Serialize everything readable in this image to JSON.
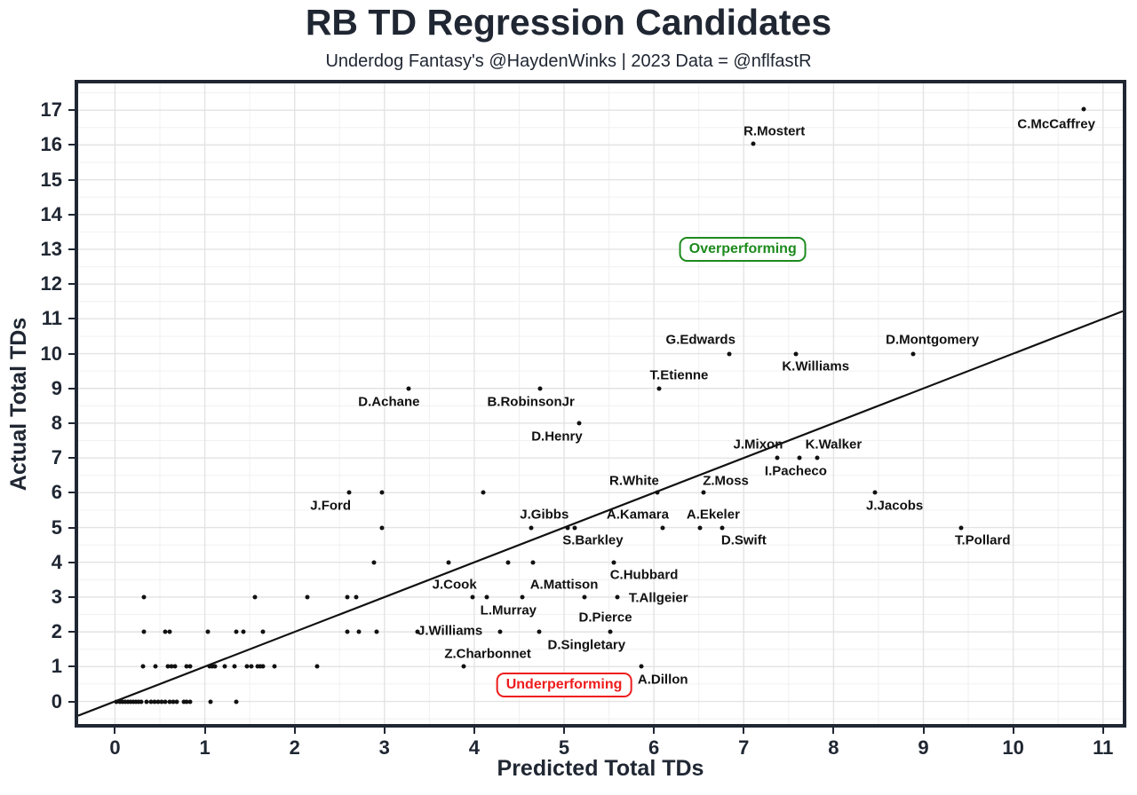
{
  "header": {
    "title": "RB TD Regression Candidates",
    "subtitle": "Underdog Fantasy's @HaydenWinks | 2023 Data = @nflfastR"
  },
  "chart_data": {
    "type": "scatter",
    "title": "RB TD Regression Candidates",
    "subtitle": "Underdog Fantasy's @HaydenWinks | 2023 Data = @nflfastR",
    "xlabel": "Predicted Total TDs",
    "ylabel": "Actual Total TDs",
    "xlim": [
      -0.41,
      11.22
    ],
    "ylim": [
      -0.65,
      17.77
    ],
    "x_ticks": [
      0,
      1,
      2,
      3,
      4,
      5,
      6,
      7,
      8,
      9,
      10,
      11
    ],
    "y_ticks": [
      0,
      1,
      2,
      3,
      4,
      5,
      6,
      7,
      8,
      9,
      10,
      11,
      12,
      13,
      14,
      15,
      16,
      17
    ],
    "grid": {
      "minor_step": 0.5,
      "major_color": "#e3e3e3",
      "minor_color": "#f0f0f0"
    },
    "identity_line": {
      "x1": -0.41,
      "y1": -0.41,
      "x2": 11.22,
      "y2": 11.22,
      "color": "#111111",
      "width": 2.2
    },
    "annotations": [
      {
        "text": "Overperforming",
        "x": 6.99,
        "y": 13.0,
        "color": "#1d8a1d"
      },
      {
        "text": "Underperforming",
        "x": 5.0,
        "y": 0.48,
        "color": "#ee1c1c"
      }
    ],
    "players": [
      {
        "name": "C.McCaffrey",
        "x": 10.78,
        "y": 17.03,
        "lx": 10.48,
        "ly": 16.6
      },
      {
        "name": "R.Mostert",
        "x": 7.11,
        "y": 16.03,
        "lx": 7.34,
        "ly": 16.4
      },
      {
        "name": "G.Edwards",
        "x": 6.84,
        "y": 10.0,
        "lx": 6.52,
        "ly": 10.4
      },
      {
        "name": "D.Montgomery",
        "x": 8.89,
        "y": 10.0,
        "lx": 9.1,
        "ly": 10.4
      },
      {
        "name": "K.Williams",
        "x": 7.58,
        "y": 10.0,
        "lx": 7.8,
        "ly": 9.63
      },
      {
        "name": "T.Etienne",
        "x": 6.06,
        "y": 9.0,
        "lx": 6.28,
        "ly": 9.37
      },
      {
        "name": "D.Achane",
        "x": 3.27,
        "y": 9.0,
        "lx": 3.05,
        "ly": 8.62
      },
      {
        "name": "B.RobinsonJr",
        "x": 4.73,
        "y": 9.0,
        "lx": 4.63,
        "ly": 8.62
      },
      {
        "name": "D.Henry",
        "x": 5.17,
        "y": 8.0,
        "lx": 4.92,
        "ly": 7.62
      },
      {
        "name": "J.Mixon",
        "x": 7.37,
        "y": 7.0,
        "lx": 7.16,
        "ly": 7.38
      },
      {
        "name": "K.Walker",
        "x": 7.82,
        "y": 7.0,
        "lx": 8.0,
        "ly": 7.38
      },
      {
        "name": "I.Pacheco",
        "x": 7.62,
        "y": 7.0,
        "lx": 7.58,
        "ly": 6.62
      },
      {
        "name": "R.White",
        "x": 6.04,
        "y": 6.0,
        "lx": 5.78,
        "ly": 6.35
      },
      {
        "name": "Z.Moss",
        "x": 6.55,
        "y": 6.0,
        "lx": 6.8,
        "ly": 6.35
      },
      {
        "name": "J.Ford",
        "x": 2.61,
        "y": 6.0,
        "lx": 2.4,
        "ly": 5.63
      },
      {
        "name": "J.Jacobs",
        "x": 8.46,
        "y": 6.0,
        "lx": 8.68,
        "ly": 5.63
      },
      {
        "name": "J.Gibbs",
        "x": 4.63,
        "y": 5.0,
        "lx": 4.78,
        "ly": 5.37
      },
      {
        "name": "A.Kamara",
        "x": 6.1,
        "y": 5.0,
        "lx": 5.82,
        "ly": 5.37
      },
      {
        "name": "A.Ekeler",
        "x": 6.51,
        "y": 5.0,
        "lx": 6.66,
        "ly": 5.37
      },
      {
        "name": "S.Barkley",
        "x": 5.12,
        "y": 5.0,
        "lx": 5.32,
        "ly": 4.62
      },
      {
        "name": "D.Swift",
        "x": 6.76,
        "y": 5.0,
        "lx": 7.0,
        "ly": 4.62
      },
      {
        "name": "T.Pollard",
        "x": 9.42,
        "y": 5.0,
        "lx": 9.66,
        "ly": 4.62
      },
      {
        "name": "C.Hubbard",
        "x": 5.55,
        "y": 4.0,
        "lx": 5.89,
        "ly": 3.63
      },
      {
        "name": "J.Cook",
        "x": 3.71,
        "y": 4.0,
        "lx": 3.78,
        "ly": 3.36
      },
      {
        "name": "A.Mattison",
        "x": 5.23,
        "y": 3.0,
        "lx": 5.0,
        "ly": 3.36
      },
      {
        "name": "T.Allgeier",
        "x": 5.59,
        "y": 3.0,
        "lx": 6.05,
        "ly": 2.98
      },
      {
        "name": "L.Murray",
        "x": 4.53,
        "y": 3.0,
        "lx": 4.38,
        "ly": 2.62
      },
      {
        "name": "J.Williams",
        "x": 3.37,
        "y": 2.0,
        "lx": 3.73,
        "ly": 2.02
      },
      {
        "name": "D.Singletary",
        "x": 4.72,
        "y": 2.0,
        "lx": 5.25,
        "ly": 1.61
      },
      {
        "name": "D.Pierce",
        "x": 5.51,
        "y": 2.0,
        "lx": 5.46,
        "ly": 2.4
      },
      {
        "name": "Z.Charbonnet",
        "x": 3.88,
        "y": 1.0,
        "lx": 4.15,
        "ly": 1.36
      },
      {
        "name": "A.Dillon",
        "x": 5.86,
        "y": 1.0,
        "lx": 6.1,
        "ly": 0.62
      }
    ],
    "background_points": [
      [
        2.97,
        6
      ],
      [
        4.1,
        6
      ],
      [
        2.97,
        5
      ],
      [
        5.04,
        5
      ],
      [
        2.88,
        4
      ],
      [
        4.38,
        4
      ],
      [
        4.65,
        4
      ],
      [
        0.32,
        3
      ],
      [
        1.56,
        3
      ],
      [
        2.14,
        3
      ],
      [
        2.59,
        3
      ],
      [
        2.69,
        3
      ],
      [
        3.98,
        3
      ],
      [
        4.14,
        3
      ],
      [
        0.32,
        2
      ],
      [
        0.56,
        2
      ],
      [
        0.61,
        2
      ],
      [
        1.03,
        2
      ],
      [
        1.35,
        2
      ],
      [
        1.43,
        2
      ],
      [
        1.65,
        2
      ],
      [
        2.59,
        2
      ],
      [
        2.72,
        2
      ],
      [
        2.91,
        2
      ],
      [
        4.29,
        2
      ],
      [
        0.31,
        1
      ],
      [
        0.45,
        1
      ],
      [
        0.59,
        1
      ],
      [
        0.63,
        1
      ],
      [
        0.67,
        1
      ],
      [
        0.8,
        1
      ],
      [
        0.84,
        1
      ],
      [
        1.05,
        1
      ],
      [
        1.08,
        1
      ],
      [
        1.11,
        1
      ],
      [
        1.22,
        1
      ],
      [
        1.33,
        1
      ],
      [
        1.47,
        1
      ],
      [
        1.52,
        1
      ],
      [
        1.59,
        1
      ],
      [
        1.62,
        1
      ],
      [
        1.65,
        1
      ],
      [
        1.78,
        1
      ],
      [
        2.25,
        1
      ],
      [
        0.02,
        0
      ],
      [
        0.05,
        0
      ],
      [
        0.08,
        0
      ],
      [
        0.11,
        0
      ],
      [
        0.14,
        0
      ],
      [
        0.17,
        0
      ],
      [
        0.2,
        0
      ],
      [
        0.23,
        0
      ],
      [
        0.26,
        0
      ],
      [
        0.29,
        0
      ],
      [
        0.35,
        0
      ],
      [
        0.4,
        0
      ],
      [
        0.44,
        0
      ],
      [
        0.48,
        0
      ],
      [
        0.52,
        0
      ],
      [
        0.56,
        0
      ],
      [
        0.61,
        0
      ],
      [
        0.65,
        0
      ],
      [
        0.69,
        0
      ],
      [
        0.77,
        0
      ],
      [
        0.8,
        0
      ],
      [
        0.84,
        0
      ],
      [
        1.06,
        0
      ],
      [
        1.35,
        0
      ]
    ]
  },
  "colors": {
    "ink": "#202733",
    "point": "#111111",
    "grid_major": "#e3e3e3",
    "grid_minor": "#f0f0f0"
  }
}
